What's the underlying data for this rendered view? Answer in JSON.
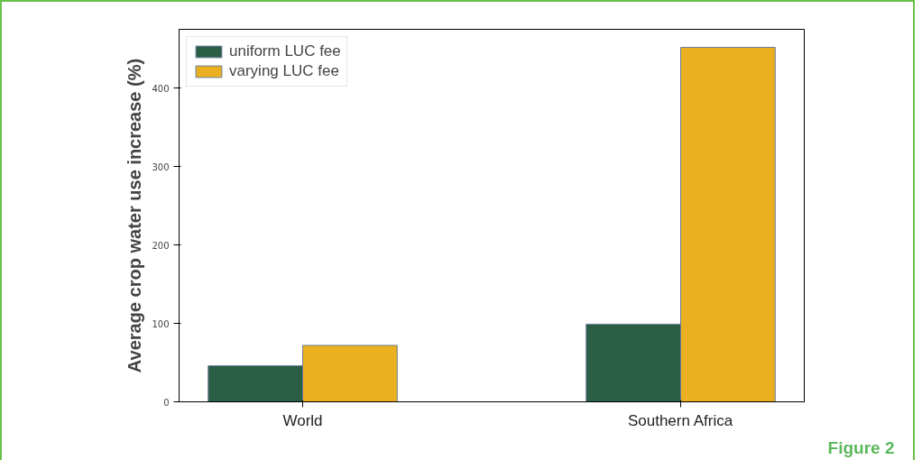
{
  "chart_data": {
    "type": "bar",
    "ylabel": "Average crop water use increase (%)",
    "categories": [
      "World",
      "Southern Africa"
    ],
    "series": [
      {
        "name": "uniform LUC fee",
        "color": "#2a5e45",
        "values": [
          46,
          99
        ]
      },
      {
        "name": "varying LUC fee",
        "color": "#ebb020",
        "values": [
          72,
          452
        ]
      }
    ],
    "ylim": [
      0,
      475
    ],
    "yticks": [
      0,
      100,
      200,
      300,
      400
    ],
    "grid": false,
    "legend": "top left",
    "annotations": [
      "Figure 2"
    ]
  }
}
